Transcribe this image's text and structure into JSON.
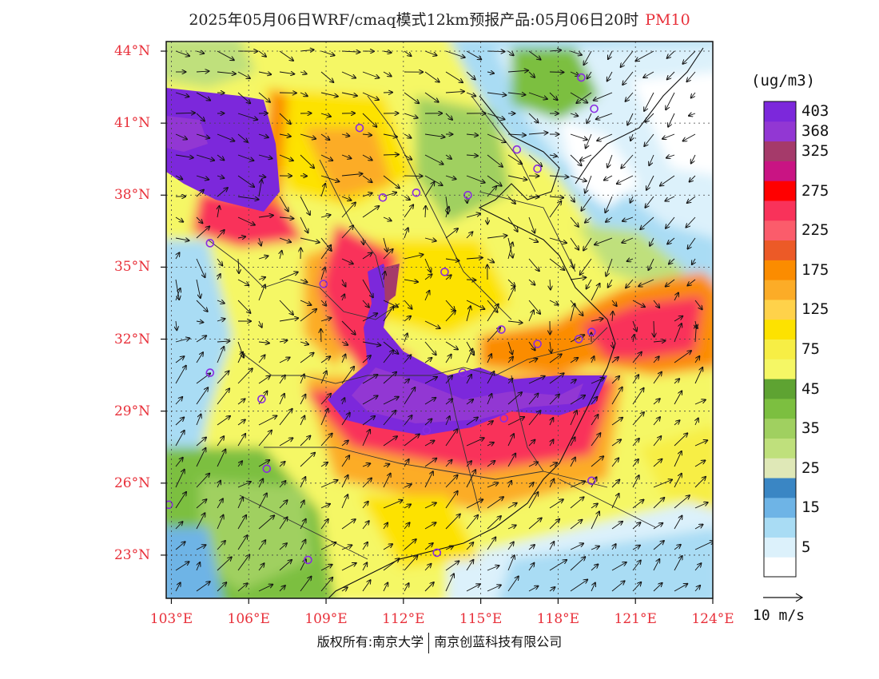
{
  "title": {
    "main": "2025年05月06日WRF/cmaq模式12km预报产品:05月06日20时",
    "pollutant": "PM10"
  },
  "map": {
    "lon_range": [
      102.8,
      124
    ],
    "lat_range": [
      21.2,
      44.4
    ],
    "lat_ticks": [
      {
        "value": 44,
        "label": "44°N"
      },
      {
        "value": 41,
        "label": "41°N"
      },
      {
        "value": 38,
        "label": "38°N"
      },
      {
        "value": 35,
        "label": "35°N"
      },
      {
        "value": 32,
        "label": "32°N"
      },
      {
        "value": 29,
        "label": "29°N"
      },
      {
        "value": 26,
        "label": "26°N"
      },
      {
        "value": 23,
        "label": "23°N"
      }
    ],
    "lon_ticks": [
      {
        "value": 103,
        "label": "103°E"
      },
      {
        "value": 106,
        "label": "106°E"
      },
      {
        "value": 109,
        "label": "109°E"
      },
      {
        "value": 112,
        "label": "112°E"
      },
      {
        "value": 115,
        "label": "115°E"
      },
      {
        "value": 118,
        "label": "118°E"
      },
      {
        "value": 121,
        "label": "121°E"
      },
      {
        "value": 124,
        "label": "124°E"
      }
    ],
    "city_markers": [
      [
        104.5,
        30.6
      ],
      [
        106.5,
        29.5
      ],
      [
        106.7,
        26.6
      ],
      [
        102.9,
        25.1
      ],
      [
        108.3,
        22.8
      ],
      [
        108.9,
        34.3
      ],
      [
        104.5,
        36.0
      ],
      [
        110.3,
        40.8
      ],
      [
        111.2,
        37.9
      ],
      [
        112.5,
        38.1
      ],
      [
        113.6,
        34.8
      ],
      [
        114.3,
        30.6
      ],
      [
        112.9,
        28.2
      ],
      [
        115.9,
        28.7
      ],
      [
        115.8,
        32.4
      ],
      [
        117.2,
        31.8
      ],
      [
        118.8,
        32.0
      ],
      [
        119.3,
        32.3
      ],
      [
        119.3,
        26.1
      ],
      [
        113.3,
        23.1
      ],
      [
        114.5,
        38.0
      ],
      [
        116.4,
        39.9
      ],
      [
        117.2,
        39.1
      ],
      [
        118.9,
        42.9
      ],
      [
        119.4,
        41.6
      ]
    ]
  },
  "colorbar": {
    "unit": "(ug/m3)",
    "colors": [
      "#ffffff",
      "#dcf1fb",
      "#a9dcf4",
      "#6eb4e6",
      "#3a86c4",
      "#dfe8b7",
      "#bfe07c",
      "#a0d060",
      "#7cbf40",
      "#5ea332",
      "#f5f765",
      "#f7ee45",
      "#fde200",
      "#ffd24a",
      "#fcac27",
      "#fb8c00",
      "#ec5a27",
      "#fb5c6b",
      "#f9325a",
      "#ff0000",
      "#c91483",
      "#a53a6a",
      "#9237d3",
      "#7c28db"
    ],
    "labels": [
      {
        "index": 1,
        "text": "5"
      },
      {
        "index": 3,
        "text": "15"
      },
      {
        "index": 5,
        "text": "25"
      },
      {
        "index": 7,
        "text": "35"
      },
      {
        "index": 9,
        "text": "45"
      },
      {
        "index": 11,
        "text": "75"
      },
      {
        "index": 13,
        "text": "125"
      },
      {
        "index": 15,
        "text": "175"
      },
      {
        "index": 17,
        "text": "225"
      },
      {
        "index": 19,
        "text": "275"
      },
      {
        "index": 21,
        "text": "325"
      },
      {
        "index": 22,
        "text": "368"
      },
      {
        "index": 23,
        "text": "403"
      }
    ]
  },
  "wind": {
    "reference_label": "10 m/s"
  },
  "copyright": {
    "left": "版权所有:南京大学",
    "right": "南京创蓝科技有限公司"
  }
}
